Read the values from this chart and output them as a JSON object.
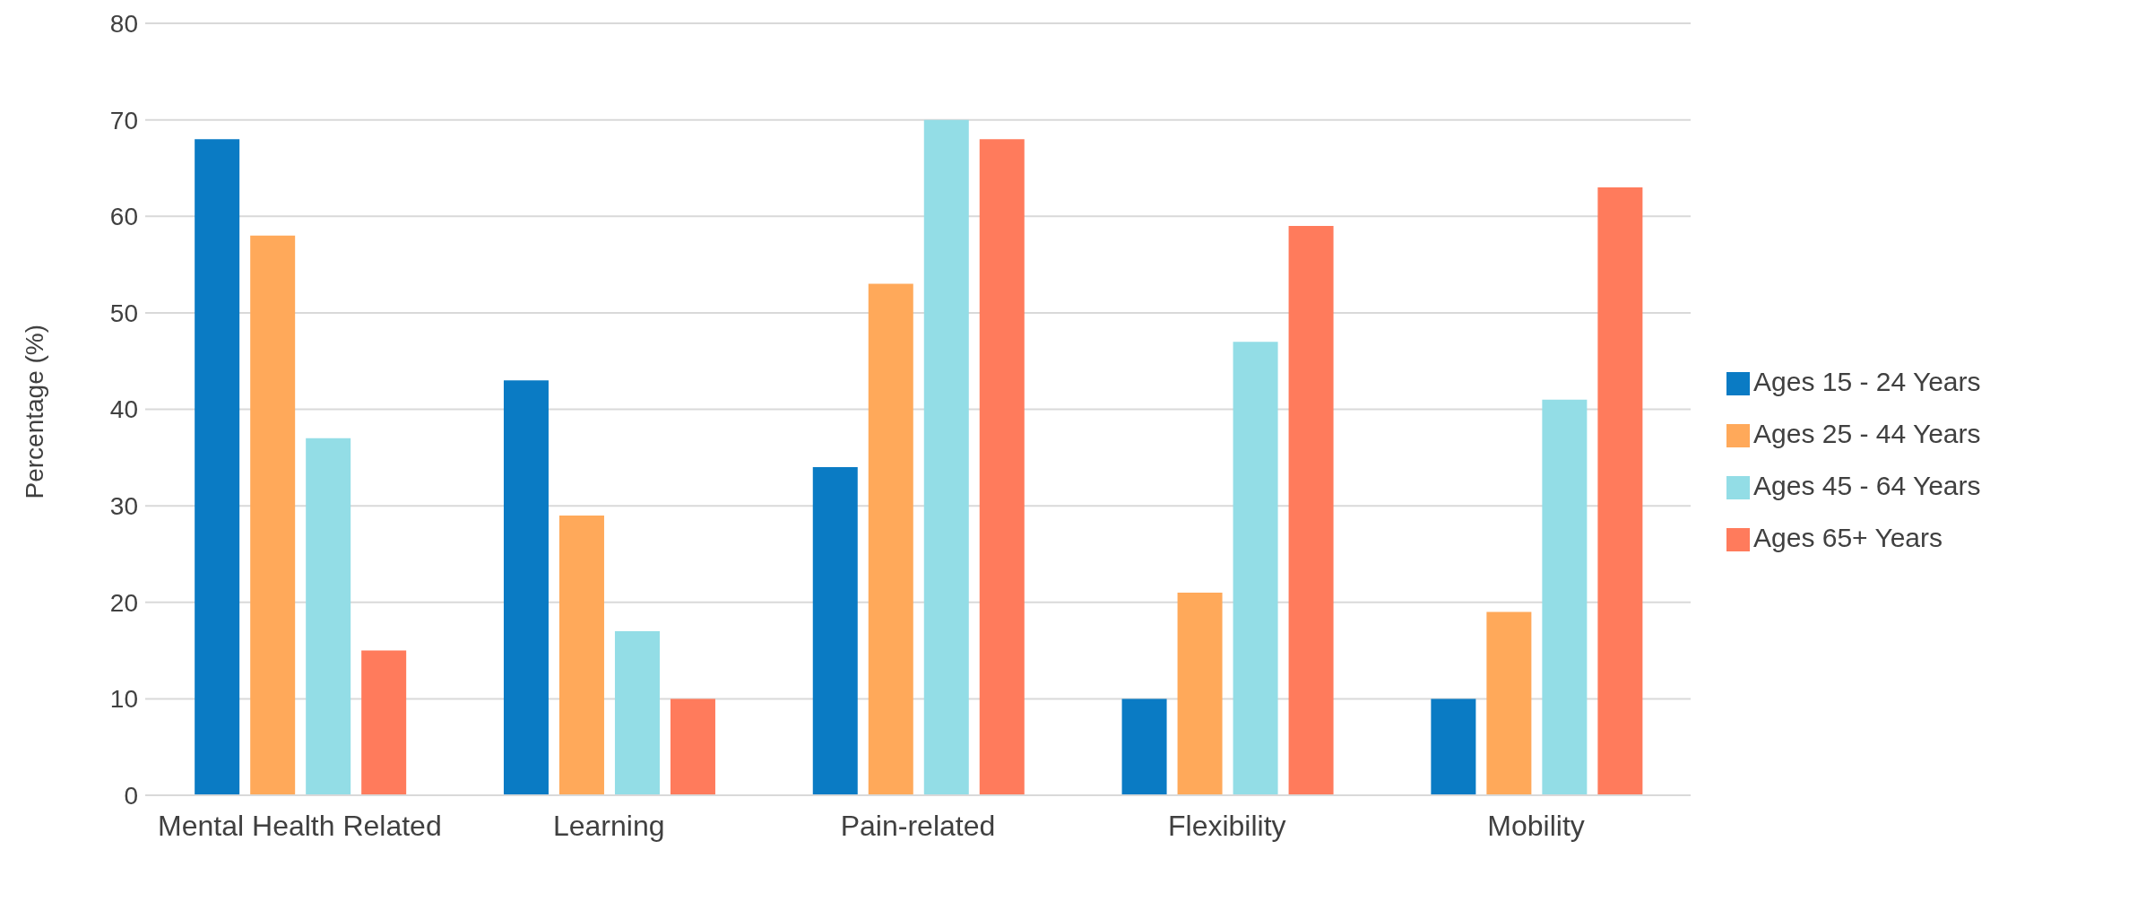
{
  "chart_data": {
    "type": "bar",
    "ylabel": "Percentage (%)",
    "categories": [
      "Mental Health Related",
      "Learning",
      "Pain-related",
      "Flexibility",
      "Mobility"
    ],
    "series": [
      {
        "name": "Ages 15 - 24 Years",
        "color": "#0a7bc4",
        "values": [
          68,
          43,
          34,
          10,
          10
        ]
      },
      {
        "name": "Ages 25 - 44 Years",
        "color": "#ffa95a",
        "values": [
          58,
          29,
          53,
          21,
          19
        ]
      },
      {
        "name": "Ages 45 - 64 Years",
        "color": "#93dde6",
        "values": [
          37,
          17,
          70,
          47,
          41
        ]
      },
      {
        "name": "Ages 65+ Years",
        "color": "#ff7b5c",
        "values": [
          15,
          10,
          68,
          59,
          63
        ]
      }
    ],
    "ylim": [
      0,
      80
    ],
    "yticks": [
      0,
      10,
      20,
      30,
      40,
      50,
      60,
      70,
      80
    ],
    "grid": "y",
    "legend": "right"
  }
}
